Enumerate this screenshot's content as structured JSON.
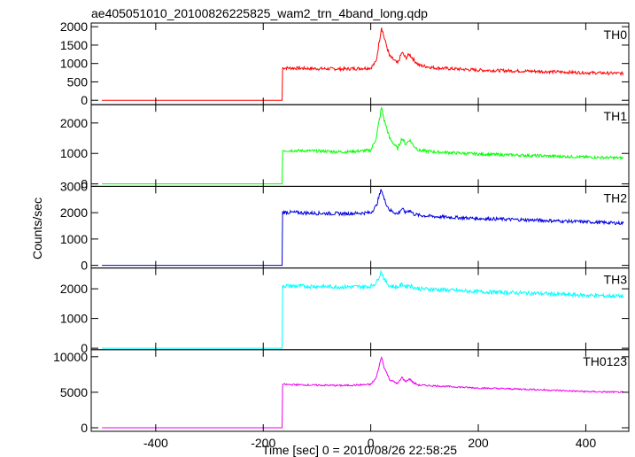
{
  "chart_data": {
    "type": "line",
    "title": "ae405051010_20100826225825_wam2_trn_4band_long.qdp",
    "xlabel": "Time [sec] 0 = 2010/08/26 22:58:25",
    "ylabel": "Counts/sec",
    "xlim": [
      -520,
      480
    ],
    "x_ticks": [
      -400,
      -200,
      0,
      200,
      400
    ],
    "grid": false,
    "panels": [
      {
        "name": "TH0",
        "color": "#ff0000",
        "ylim": [
          -120,
          2100
        ],
        "y_ticks": [
          0,
          500,
          1000,
          1500,
          2000
        ],
        "x": [
          -500,
          -165,
          -164,
          -100,
          -50,
          0,
          10,
          20,
          25,
          35,
          50,
          58,
          65,
          72,
          80,
          90,
          120,
          200,
          300,
          400,
          470
        ],
        "y": [
          0,
          0,
          880,
          860,
          850,
          880,
          1050,
          2000,
          1700,
          1200,
          1000,
          1300,
          1150,
          1250,
          1100,
          950,
          880,
          820,
          790,
          750,
          730
        ]
      },
      {
        "name": "TH1",
        "color": "#00ff00",
        "ylim": [
          -80,
          2600
        ],
        "y_ticks": [
          0,
          1000,
          2000
        ],
        "x": [
          -500,
          -165,
          -164,
          -100,
          -50,
          0,
          10,
          20,
          25,
          35,
          50,
          58,
          65,
          72,
          80,
          90,
          120,
          200,
          300,
          400,
          470
        ],
        "y": [
          0,
          0,
          1100,
          1080,
          1050,
          1100,
          1500,
          2500,
          2100,
          1500,
          1150,
          1500,
          1300,
          1450,
          1250,
          1100,
          1050,
          980,
          930,
          880,
          850
        ]
      },
      {
        "name": "TH2",
        "color": "#0000dd",
        "ylim": [
          -100,
          3000
        ],
        "y_ticks": [
          0,
          1000,
          2000,
          3000
        ],
        "x": [
          -500,
          -165,
          -164,
          -100,
          -50,
          0,
          10,
          20,
          25,
          35,
          50,
          58,
          65,
          72,
          80,
          90,
          120,
          200,
          300,
          400,
          470
        ],
        "y": [
          0,
          0,
          2020,
          1980,
          1960,
          2000,
          2250,
          2900,
          2500,
          2100,
          1950,
          2150,
          2000,
          2100,
          1950,
          1900,
          1850,
          1780,
          1720,
          1650,
          1600
        ]
      },
      {
        "name": "TH3",
        "color": "#00ffff",
        "ylim": [
          -50,
          2700
        ],
        "y_ticks": [
          0,
          1000,
          2000
        ],
        "x": [
          -500,
          -165,
          -164,
          -100,
          -50,
          0,
          10,
          20,
          25,
          35,
          50,
          58,
          65,
          72,
          80,
          90,
          120,
          200,
          300,
          400,
          470
        ],
        "y": [
          0,
          0,
          2100,
          2080,
          2060,
          2080,
          2200,
          2600,
          2300,
          2100,
          2050,
          2150,
          2080,
          2120,
          2050,
          2000,
          1980,
          1900,
          1850,
          1780,
          1750
        ]
      },
      {
        "name": "TH0123",
        "color": "#ee00ee",
        "ylim": [
          -500,
          11000
        ],
        "y_ticks": [
          0,
          5000,
          10000
        ],
        "x": [
          -500,
          -165,
          -164,
          -100,
          -50,
          0,
          10,
          20,
          25,
          35,
          50,
          58,
          65,
          72,
          80,
          90,
          120,
          200,
          300,
          400,
          470
        ],
        "y": [
          0,
          0,
          6100,
          6000,
          5950,
          6100,
          7000,
          10000,
          8500,
          6800,
          6200,
          7100,
          6500,
          6900,
          6300,
          6000,
          5900,
          5600,
          5400,
          5100,
          5000
        ]
      }
    ]
  }
}
